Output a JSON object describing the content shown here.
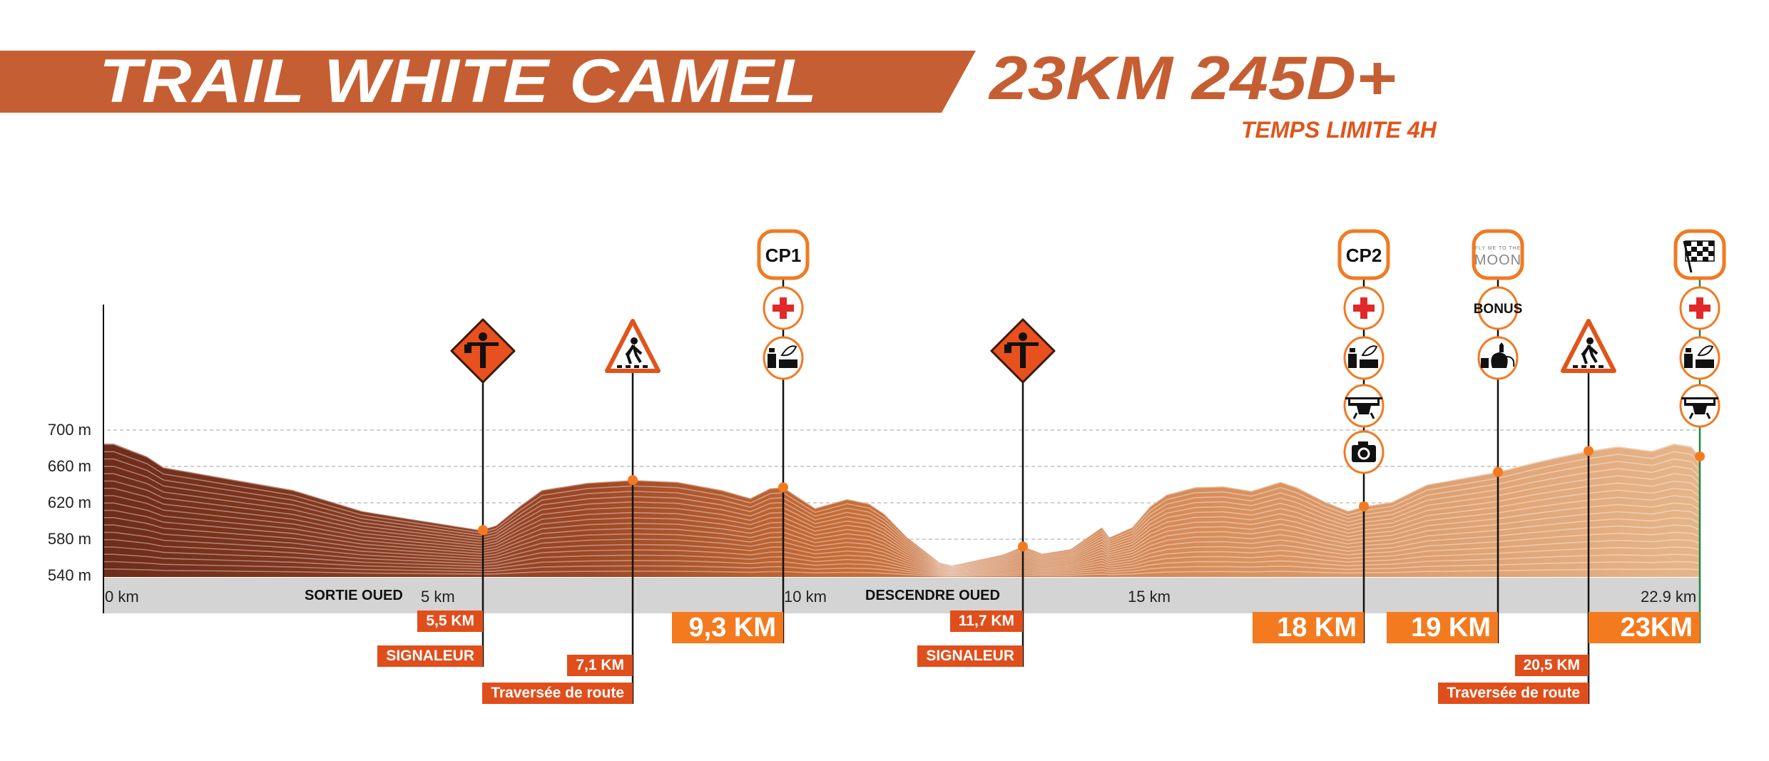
{
  "header": {
    "title": "TRAIL WHITE CAMEL",
    "stats": "23KM 245D+",
    "time_limit": "TEMPS LIMITE 4H"
  },
  "colors": {
    "brand": "#c55f33",
    "label_red": "#e04e1b",
    "label_orange": "#f47a1f",
    "finish_line": "#1a8a3a",
    "profile_start": "#6e2c1a",
    "profile_end": "#e6b58a"
  },
  "chart_data": {
    "type": "area",
    "title": "",
    "xlabel": "",
    "ylabel": "",
    "ylim": [
      540,
      700
    ],
    "y_ticks": [
      "700 m",
      "660 m",
      "620 m",
      "580 m",
      "540 m"
    ],
    "y_tick_values": [
      700,
      660,
      620,
      580,
      540
    ],
    "x_ticks": [
      "0 km",
      "5 km",
      "10 km",
      "15 km",
      "22.9 km"
    ],
    "x_zone_labels": [
      "SORTIE OUED",
      "DESCENDRE OUED"
    ],
    "grid": true,
    "profile": {
      "x_km": [
        0,
        0.15,
        0.63,
        0.87,
        1.77,
        2.75,
        3.74,
        4.39,
        5.05,
        5.47,
        5.64,
        5.89,
        6.13,
        6.62,
        7.1,
        7.75,
        8.4,
        8.82,
        9.11,
        9.3,
        9.48,
        9.62,
        9.94,
        10.16,
        10.31,
        10.54,
        10.87,
        10.99,
        11.16,
        11.5,
        11.7,
        12.06,
        12.58,
        13.16,
        13.3,
        13.72,
        14.05,
        14.36,
        14.88,
        15.4,
        15.92,
        16.46,
        16.76,
        17.29,
        17.71,
        18,
        18.21,
        18.47,
        18.85,
        19,
        19.59,
        20.05,
        20.5,
        21.16,
        21.93,
        22.42,
        22.81,
        23
      ],
      "elevation_m": [
        685,
        685,
        671,
        659,
        647,
        634,
        611,
        603,
        595,
        590,
        595,
        616,
        634,
        642,
        645,
        643,
        634,
        625,
        636,
        637,
        624,
        614,
        624,
        619,
        608,
        582,
        554,
        551,
        555,
        563,
        572,
        564,
        569,
        593,
        582,
        593,
        616,
        629,
        637,
        638,
        633,
        643,
        637,
        621,
        611,
        616,
        621,
        640,
        650,
        654,
        664,
        671,
        677,
        682,
        677,
        685,
        682,
        671
      ]
    },
    "markers": [
      {
        "km": 5.5,
        "elevation_m": 590,
        "head": "flagger-sign",
        "icons": [],
        "labels": [
          {
            "text": "5,5 KM",
            "style": "small"
          },
          {
            "text": "SIGNALEUR",
            "style": "small"
          }
        ]
      },
      {
        "km": 7.1,
        "elevation_m": 645,
        "head": "pedestrian-sign",
        "icons": [],
        "labels": [
          {
            "text": "7,1 KM",
            "style": "small"
          },
          {
            "text": "Traversée de route",
            "style": "small"
          }
        ]
      },
      {
        "km": 9.3,
        "elevation_m": 637,
        "head": "box",
        "head_text": "CP1",
        "icons": [
          "first-aid",
          "food"
        ],
        "labels": [
          {
            "text": "9,3 KM",
            "style": "big"
          }
        ]
      },
      {
        "km": 11.7,
        "elevation_m": 572,
        "head": "flagger-sign",
        "icons": [],
        "labels": [
          {
            "text": "11,7 KM",
            "style": "small"
          },
          {
            "text": "SIGNALEUR",
            "style": "small"
          }
        ]
      },
      {
        "km": 18,
        "elevation_m": 616,
        "head": "box",
        "head_text": "CP2",
        "icons": [
          "first-aid",
          "food",
          "drone",
          "camera"
        ],
        "labels": [
          {
            "text": "18 KM",
            "style": "big"
          }
        ]
      },
      {
        "km": 19,
        "elevation_m": 654,
        "head": "box",
        "head_logo": [
          "FLY ME TO THE",
          "MOON"
        ],
        "icons": [
          "bonus",
          "tea"
        ],
        "icon_text": {
          "bonus": "BONUS"
        },
        "labels": [
          {
            "text": "19 KM",
            "style": "big"
          }
        ]
      },
      {
        "km": 20.5,
        "elevation_m": 677,
        "head": "pedestrian-sign",
        "icons": [],
        "labels": [
          {
            "text": "20,5 KM",
            "style": "small"
          },
          {
            "text": "Traversée de route",
            "style": "small"
          }
        ]
      },
      {
        "km": 23,
        "elevation_m": 671,
        "head": "box",
        "head_icon": "checkered-flag",
        "icons": [
          "first-aid",
          "food",
          "drone"
        ],
        "labels": [
          {
            "text": "23KM",
            "style": "big"
          }
        ],
        "finish": true
      }
    ]
  }
}
